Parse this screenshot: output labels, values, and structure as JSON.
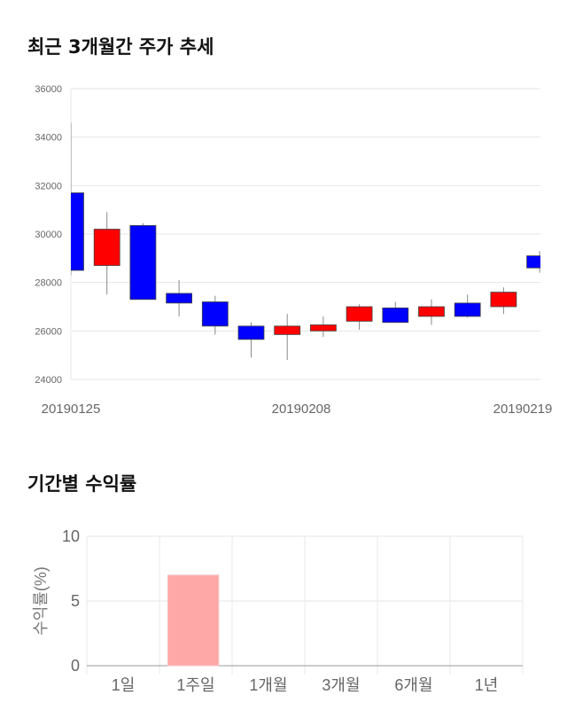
{
  "chart_data": [
    {
      "type": "candlestick",
      "title": "최근 3개월간 주가 추세",
      "ylim": [
        24000,
        36000
      ],
      "yticks": [
        24000,
        26000,
        28000,
        30000,
        32000,
        34000,
        36000
      ],
      "xtick_labels": [
        "20190125",
        "20190208",
        "20190219"
      ],
      "up_color": "#ff0000",
      "down_color": "#0000ff",
      "candles": [
        {
          "o": 31700,
          "h": 34600,
          "l": 28300,
          "c": 28500
        },
        {
          "o": 28700,
          "h": 30900,
          "l": 27500,
          "c": 30200
        },
        {
          "o": 30350,
          "h": 30450,
          "l": 27300,
          "c": 27300
        },
        {
          "o": 27550,
          "h": 28100,
          "l": 26600,
          "c": 27150
        },
        {
          "o": 27200,
          "h": 27450,
          "l": 25850,
          "c": 26200
        },
        {
          "o": 26200,
          "h": 26350,
          "l": 24900,
          "c": 25650
        },
        {
          "o": 25850,
          "h": 26700,
          "l": 24800,
          "c": 26200
        },
        {
          "o": 26000,
          "h": 26600,
          "l": 25750,
          "c": 26250
        },
        {
          "o": 26400,
          "h": 27100,
          "l": 26050,
          "c": 27000
        },
        {
          "o": 26950,
          "h": 27200,
          "l": 26350,
          "c": 26350
        },
        {
          "o": 26600,
          "h": 27300,
          "l": 26250,
          "c": 27000
        },
        {
          "o": 27150,
          "h": 27500,
          "l": 26550,
          "c": 26600
        },
        {
          "o": 27000,
          "h": 27800,
          "l": 26700,
          "c": 27600
        },
        {
          "o": 29100,
          "h": 29300,
          "l": 28400,
          "c": 28600
        }
      ]
    },
    {
      "type": "bar",
      "title": "기간별 수익률",
      "ylabel": "수익률(%)",
      "ylim": [
        0,
        10
      ],
      "yticks": [
        0,
        5,
        10
      ],
      "categories": [
        "1일",
        "1주일",
        "1개월",
        "3개월",
        "6개월",
        "1년"
      ],
      "values": [
        0,
        7,
        0,
        0,
        0,
        0
      ],
      "bar_color": "#ffa8a8"
    }
  ]
}
